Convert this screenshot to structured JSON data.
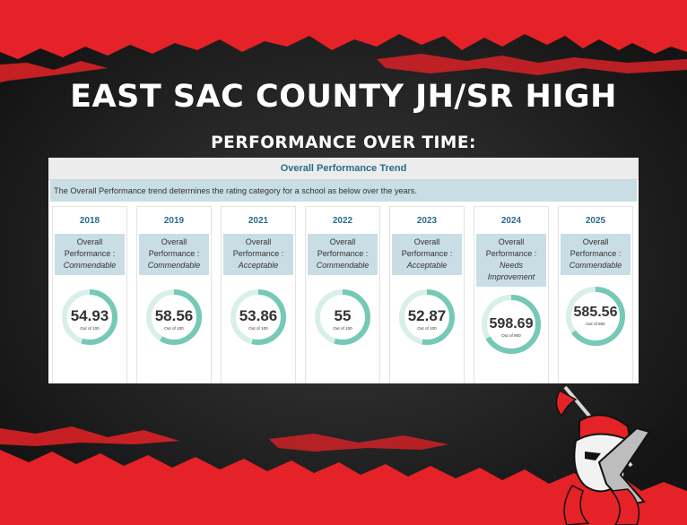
{
  "title": "EAST SAC COUNTY JH/SR HIGH",
  "subtitle": "PERFORMANCE OVER TIME:",
  "colors": {
    "brand_red": "#e52227",
    "gauge_fill": "#76c8b7",
    "gauge_track": "#d9efe9",
    "header_blue": "#2b6a8a",
    "label_bg": "#c9dde4"
  },
  "trend": {
    "header": "Overall Performance Trend",
    "description": "The Overall Performance trend determines the rating category for a school as below over the years.",
    "years": [
      {
        "year": "2018",
        "label": "Overall Performance :",
        "category": "Commendable",
        "score": "54.93",
        "out_of": "Out of 100",
        "fraction": 0.5493
      },
      {
        "year": "2019",
        "label": "Overall Performance :",
        "category": "Commendable",
        "score": "58.56",
        "out_of": "Out of 100",
        "fraction": 0.5856
      },
      {
        "year": "2021",
        "label": "Overall Performance :",
        "category": "Acceptable",
        "score": "53.86",
        "out_of": "Out of 100",
        "fraction": 0.5386
      },
      {
        "year": "2022",
        "label": "Overall Performance :",
        "category": "Commendable",
        "score": "55",
        "out_of": "Out of 100",
        "fraction": 0.55
      },
      {
        "year": "2023",
        "label": "Overall Performance :",
        "category": "Acceptable",
        "score": "52.87",
        "out_of": "Out of 100",
        "fraction": 0.5287
      },
      {
        "year": "2024",
        "label": "Overall Performance :",
        "category": "Needs Improvement",
        "score": "598.69",
        "out_of": "Out of 900",
        "fraction": 0.6652
      },
      {
        "year": "2025",
        "label": "Overall Performance :",
        "category": "Commendable",
        "score": "585.56",
        "out_of": "Out of 900",
        "fraction": 0.6506
      }
    ]
  },
  "mascot": {
    "icon": "knight-mascot-logo"
  }
}
